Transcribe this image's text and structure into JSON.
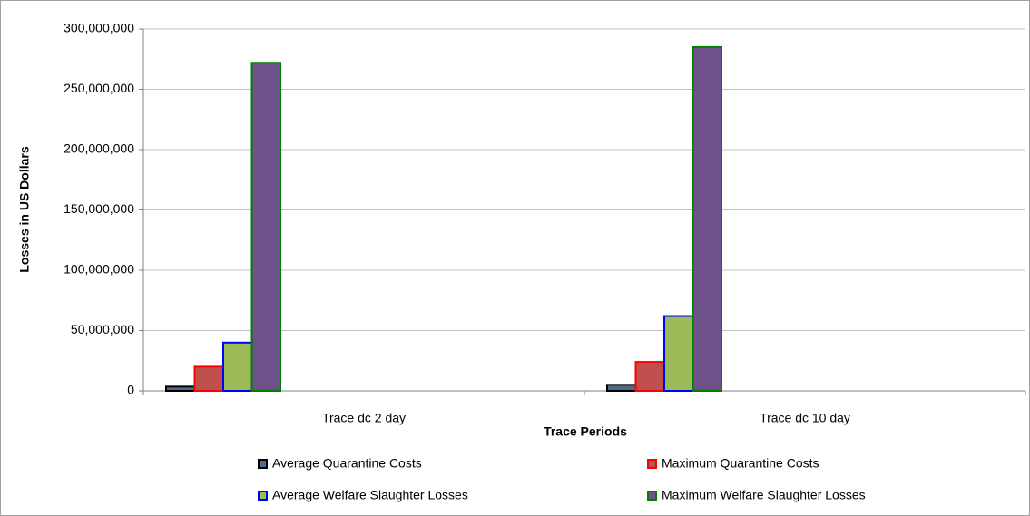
{
  "chart_data": {
    "type": "bar",
    "x_label": "Trace Periods",
    "y_label": "Losses in US Dollars",
    "categories": [
      "Trace dc 2 day",
      "Trace dc 10 day"
    ],
    "series": [
      {
        "name": "Average Quarantine Costs",
        "color": "#4f6a8c",
        "edge_color": "#000000",
        "values": [
          3500000,
          5000000
        ]
      },
      {
        "name": "Maximum Quarantine Costs",
        "color": "#c0504d",
        "edge_color": "#ff0000",
        "values": [
          20000000,
          24000000
        ]
      },
      {
        "name": "Average Welfare Slaughter Losses",
        "color": "#9bbb59",
        "edge_color": "#0000ff",
        "values": [
          40000000,
          62000000
        ]
      },
      {
        "name": "Maximum Welfare Slaughter Losses",
        "color": "#6d5289",
        "edge_color": "#008000",
        "values": [
          272000000,
          285000000
        ]
      }
    ],
    "ylim": [
      0,
      300000000
    ],
    "yticks": [
      0,
      {
        "value": 50000000,
        "label": "50,000,000"
      },
      {
        "value": 100000000,
        "label": "100,000,000"
      },
      {
        "value": 150000000,
        "label": "150,000,000"
      },
      {
        "value": 200000000,
        "label": "200,000,000"
      },
      {
        "value": 250000000,
        "label": "250,000,000"
      },
      {
        "value": 300000000,
        "label": "300,000,000"
      }
    ],
    "grid": true,
    "legend": "bottom"
  }
}
